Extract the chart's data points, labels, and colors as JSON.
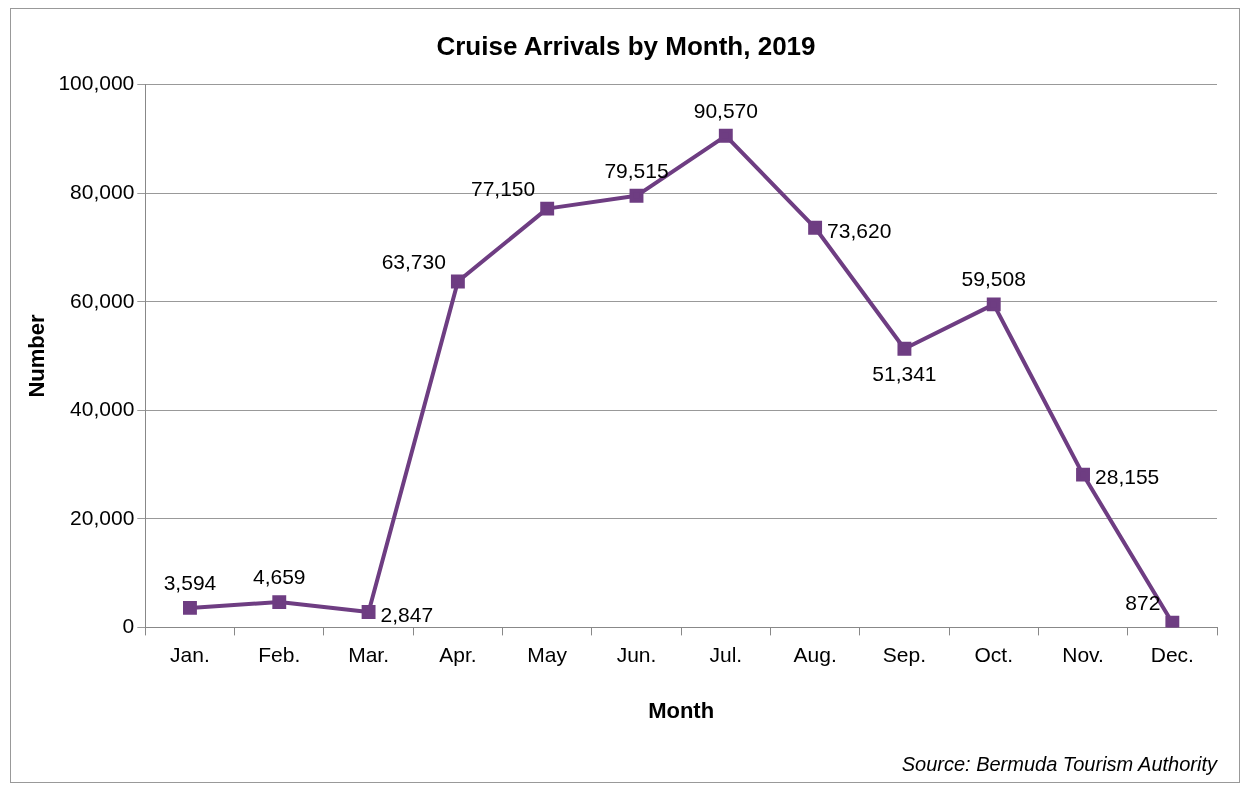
{
  "chart_data": {
    "type": "line",
    "title": "Cruise Arrivals by Month, 2019",
    "xlabel": "Month",
    "ylabel": "Number",
    "categories": [
      "Jan.",
      "Feb.",
      "Mar.",
      "Apr.",
      "May",
      "Jun.",
      "Jul.",
      "Aug.",
      "Sep.",
      "Oct.",
      "Nov.",
      "Dec."
    ],
    "series": [
      {
        "color": "#6e3d82",
        "values": [
          3594,
          4659,
          2847,
          63730,
          77150,
          79515,
          90570,
          73620,
          51341,
          59508,
          28155,
          872
        ],
        "value_labels": [
          "3,594",
          "4,659",
          "2,847",
          "63,730",
          "77,150",
          "79,515",
          "90,570",
          "73,620",
          "51,341",
          "59,508",
          "28,155",
          "872"
        ]
      }
    ],
    "ylim": [
      0,
      100000
    ],
    "yticks": [
      {
        "value": 0,
        "label": "0"
      },
      {
        "value": 20000,
        "label": "20,000"
      },
      {
        "value": 40000,
        "label": "40,000"
      },
      {
        "value": 60000,
        "label": "60,000"
      },
      {
        "value": 80000,
        "label": "80,000"
      },
      {
        "value": 100000,
        "label": "100,000"
      }
    ],
    "grid": "y",
    "legend": false,
    "marker": "square",
    "line_style": "solid",
    "annotations": [
      "Source: Bermuda Tourism Authority"
    ]
  }
}
